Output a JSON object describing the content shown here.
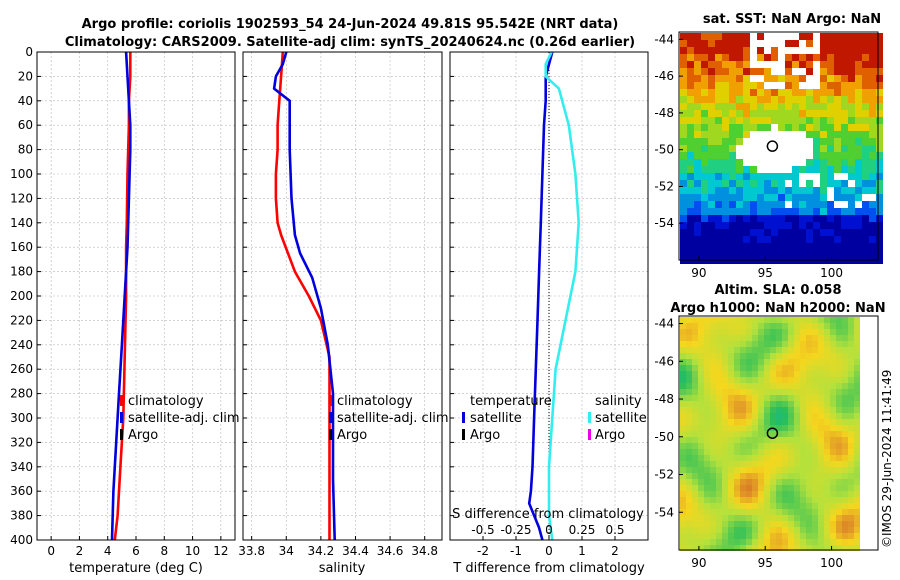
{
  "header": {
    "title_line1": "Argo profile: coriolis 1902593_54 24-Jun-2024 49.81S 95.542E (NRT data)",
    "title_line2": "Climatology: CARS2009. Satellite-adj clim: synTS_20240624.nc (0.26d earlier)"
  },
  "colors": {
    "climatology": "#ff0000",
    "satellite_adj": "#0000dd",
    "argo": "#000000",
    "salinity_satellite": "#33eeee",
    "salinity_argo": "#ee00ee"
  },
  "chart_data": [
    {
      "type": "line",
      "id": "temperature",
      "xlabel": "temperature (deg C)",
      "xlim": [
        -1,
        13
      ],
      "xticks": [
        0,
        2,
        4,
        6,
        8,
        10,
        12
      ],
      "ylim": [
        400,
        0
      ],
      "yticks": [
        0,
        20,
        40,
        60,
        80,
        100,
        120,
        140,
        160,
        180,
        200,
        220,
        240,
        260,
        280,
        300,
        320,
        340,
        360,
        380,
        400
      ],
      "legend": [
        "climatology",
        "satellite-adj. clim",
        "Argo"
      ],
      "series": [
        {
          "name": "climatology",
          "color": "#ff0000",
          "x": [
            5.6,
            5.6,
            5.5,
            5.5,
            5.45,
            5.4,
            5.35,
            5.3,
            5.3,
            5.3,
            5.2,
            5.1,
            4.9,
            4.7,
            4.5
          ],
          "y": [
            0,
            20,
            40,
            60,
            80,
            100,
            140,
            160,
            180,
            200,
            250,
            300,
            340,
            380,
            400
          ]
        },
        {
          "name": "satellite-adj. clim",
          "color": "#0000dd",
          "x": [
            5.3,
            5.4,
            5.5,
            5.6,
            5.6,
            5.5,
            5.4,
            5.2,
            5.0,
            4.8,
            4.6,
            4.4,
            4.3
          ],
          "y": [
            0,
            20,
            40,
            60,
            80,
            120,
            160,
            200,
            240,
            280,
            320,
            360,
            400
          ]
        }
      ]
    },
    {
      "type": "line",
      "id": "salinity",
      "xlabel": "salinity",
      "xlim": [
        33.75,
        34.9
      ],
      "xticks": [
        33.8,
        34,
        34.2,
        34.4,
        34.6,
        34.8
      ],
      "ylim": [
        400,
        0
      ],
      "legend": [
        "climatology",
        "satellite-adj. clim",
        "Argo"
      ],
      "series": [
        {
          "name": "climatology",
          "color": "#ff0000",
          "x": [
            33.98,
            33.97,
            33.96,
            33.95,
            33.95,
            33.94,
            33.94,
            33.95,
            33.97,
            34.05,
            34.13,
            34.2,
            34.25,
            34.25,
            34.25,
            34.25
          ],
          "y": [
            0,
            20,
            40,
            60,
            80,
            100,
            120,
            140,
            150,
            180,
            200,
            220,
            250,
            300,
            350,
            400
          ]
        },
        {
          "name": "satellite-adj. clim",
          "color": "#0000dd",
          "x": [
            34.0,
            33.98,
            33.94,
            33.93,
            34.02,
            34.02,
            34.03,
            34.05,
            34.08,
            34.15,
            34.2,
            34.24,
            34.27,
            34.27,
            34.28
          ],
          "y": [
            0,
            10,
            20,
            30,
            40,
            80,
            120,
            150,
            165,
            185,
            210,
            240,
            280,
            350,
            400
          ]
        }
      ]
    },
    {
      "type": "line",
      "id": "difference",
      "xlabel": "T difference from climatology",
      "xlabel_top": "S difference from climatology",
      "xlim": [
        -3,
        3
      ],
      "xticks": [
        -2,
        -1,
        0,
        1,
        2
      ],
      "sticks_labels": [
        "-0.5",
        "-0.25",
        "0",
        "0.25",
        "0.5"
      ],
      "sticks_values": [
        -2,
        -1,
        0,
        1,
        2
      ],
      "ylim": [
        400,
        0
      ],
      "legend_temperature": [
        "temperature",
        "satellite",
        "Argo"
      ],
      "legend_salinity": [
        "salinity",
        "satellite",
        "Argo"
      ],
      "series": [
        {
          "name": "temperature satellite",
          "color": "#0000dd",
          "x": [
            0.1,
            -0.1,
            -0.1,
            -0.15,
            -0.2,
            -0.25,
            -0.3,
            -0.35,
            -0.4,
            -0.45,
            -0.5,
            -0.55,
            -0.6,
            -0.3,
            -0.2
          ],
          "y": [
            0,
            20,
            40,
            60,
            100,
            140,
            180,
            220,
            260,
            300,
            340,
            360,
            370,
            390,
            400
          ]
        },
        {
          "name": "salinity satellite",
          "color": "#33eeee",
          "x": [
            0.08,
            -0.1,
            -0.1,
            0.3,
            0.4,
            0.6,
            0.8,
            0.9,
            0.8,
            0.5,
            0.2,
            0.1,
            0.0,
            0.0,
            0.1
          ],
          "y": [
            0,
            10,
            20,
            30,
            40,
            60,
            100,
            140,
            180,
            220,
            260,
            300,
            340,
            380,
            400
          ]
        }
      ]
    },
    {
      "type": "heatmap",
      "id": "sst_map",
      "title": "sat. SST: NaN Argo: NaN",
      "xlim": [
        88.5,
        103.5
      ],
      "ylim": [
        -56,
        -43.6
      ],
      "xticks": [
        90,
        95,
        100
      ],
      "yticks": [
        -44,
        -46,
        -48,
        -50,
        -52,
        -54
      ],
      "marker": {
        "lon": 95.54,
        "lat": -49.81
      }
    },
    {
      "type": "heatmap",
      "id": "sla_map",
      "title_line1": "Altim. SLA: 0.058",
      "title_line2": "Argo h1000: NaN h2000: NaN",
      "xlim": [
        88.5,
        103.5
      ],
      "ylim": [
        -56,
        -43.6
      ],
      "xticks": [
        90,
        95,
        100
      ],
      "yticks": [
        -44,
        -46,
        -48,
        -50,
        -52,
        -54
      ],
      "marker": {
        "lon": 95.54,
        "lat": -49.81
      }
    }
  ],
  "footer": {
    "credit": "©IMOS 29-Jun-2024 11:41:49"
  }
}
